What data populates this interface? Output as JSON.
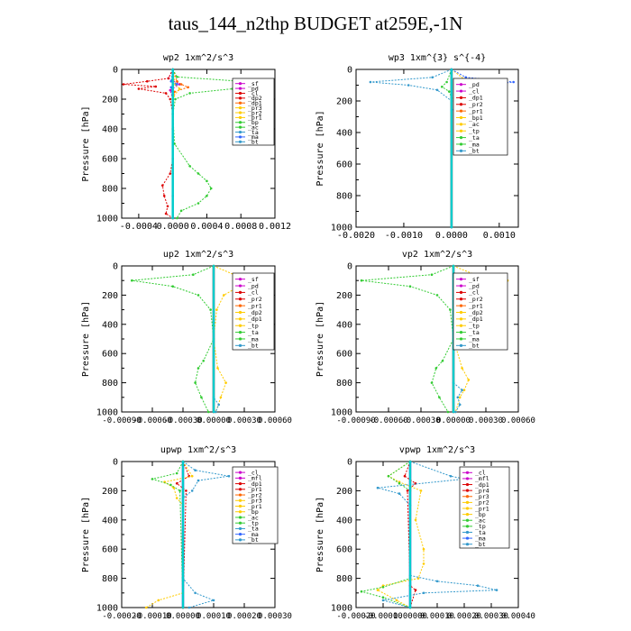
{
  "title": "taus_144_n2thp  BUDGET at259E,-1N",
  "chart_data": [
    {
      "type": "line",
      "title": "wp2   1xm^2/s^3",
      "ylabel": "Pressure [hPa]",
      "ylim": [
        1000,
        0
      ],
      "xlim": [
        -0.0006,
        0.0012
      ],
      "xticks": [
        "-0.0004",
        "0.0000",
        "0.0004",
        "0.0008",
        "0.0012"
      ],
      "xtick_values": [
        -0.0004,
        0.0,
        0.0004,
        0.0008,
        0.0012
      ],
      "yticks": [
        "0",
        "200",
        "400",
        "600",
        "800",
        "1000"
      ],
      "legend": [
        "_sf",
        "_pd",
        "_cl",
        "_dp2",
        "_dp1",
        "_pr3",
        "_pr2",
        "_pr1",
        "_bp",
        "_ac",
        "_ta",
        "_ma",
        "_bt"
      ],
      "series": [
        {
          "name": "_pd",
          "color": "#cc00cc",
          "pressure": [
            0,
            60,
            100,
            140,
            200,
            400,
            700,
            850,
            1000
          ],
          "values": [
            0,
            -5e-05,
            8e-05,
            -3e-05,
            0,
            0,
            0,
            0,
            0
          ]
        },
        {
          "name": "_cl",
          "color": "#dd0000",
          "pressure": [
            0,
            60,
            80,
            100,
            115,
            130,
            160,
            200,
            300,
            600,
            700,
            780,
            850,
            920,
            970,
            1000
          ],
          "values": [
            0,
            -5e-05,
            -0.0003,
            -0.00058,
            -0.0002,
            -0.0004,
            -8e-05,
            -3e-05,
            0,
            0,
            -3e-05,
            -0.00012,
            -0.0001,
            -6e-05,
            -8e-05,
            0
          ]
        },
        {
          "name": "_dp2",
          "color": "#ff6600",
          "pressure": [
            0,
            80,
            100,
            120,
            150,
            200,
            400,
            1000
          ],
          "values": [
            0,
            5e-05,
            0.0001,
            0.00018,
            2e-05,
            0,
            0,
            0
          ]
        },
        {
          "name": "_pr3",
          "color": "#ffcc00",
          "pressure": [
            0,
            100,
            130,
            180,
            1000
          ],
          "values": [
            0,
            3e-05,
            8e-05,
            1e-05,
            0
          ]
        },
        {
          "name": "_bp",
          "color": "#33cc33",
          "pressure": [
            0,
            50,
            80,
            100,
            130,
            160,
            200,
            300,
            500,
            650,
            700,
            750,
            800,
            850,
            900,
            950,
            1000
          ],
          "values": [
            0,
            5e-05,
            0.0008,
            0.001,
            0.0007,
            0.0002,
            3e-05,
            0,
            2e-05,
            0.0002,
            0.0003,
            0.0004,
            0.00045,
            0.0004,
            0.0003,
            0.0001,
            5e-05
          ]
        },
        {
          "name": "_ta",
          "color": "#3366ff",
          "pressure": [
            0,
            80,
            100,
            120,
            200,
            1000
          ],
          "values": [
            0,
            -2e-05,
            5e-05,
            -2e-05,
            0,
            0
          ]
        },
        {
          "name": "_bt",
          "color": "#00cccc",
          "pressure": [
            0,
            1000
          ],
          "values": [
            0,
            0
          ]
        }
      ]
    },
    {
      "type": "line",
      "title": "wp3   1xm^{3} s^{-4}",
      "ylabel": "Pressure [hPa]",
      "ylim": [
        1000,
        0
      ],
      "xlim": [
        -0.002,
        0.0014
      ],
      "xticks": [
        "-0.0020",
        "-0.0010",
        "0.0000",
        "0.0010"
      ],
      "xtick_values": [
        -0.002,
        -0.001,
        0.0,
        0.001
      ],
      "yticks": [
        "0",
        "200",
        "400",
        "600",
        "800",
        "1000"
      ],
      "legend": [
        "_pd",
        "_cl",
        "_dp1",
        "_pr2",
        "_pr1",
        "_bp1",
        "_ac",
        "_tp",
        "_ta",
        "_ma",
        "_bt"
      ],
      "series": [
        {
          "name": "_cl",
          "color": "#dd0000",
          "pressure": [
            0,
            1000
          ],
          "values": [
            0,
            0
          ]
        },
        {
          "name": "_pr2",
          "color": "#ffcc00",
          "pressure": [
            0,
            70,
            90,
            120,
            160,
            200,
            1000
          ],
          "values": [
            0,
            0.0003,
            0.0005,
            0.0003,
            0.0001,
            0,
            0
          ]
        },
        {
          "name": "_bp1",
          "color": "#33cc33",
          "pressure": [
            0,
            80,
            110,
            140,
            180,
            1000
          ],
          "values": [
            0,
            -0.0001,
            -0.0002,
            -5e-05,
            0,
            0
          ]
        },
        {
          "name": "_tp",
          "color": "#3399cc",
          "pressure": [
            0,
            50,
            80,
            100,
            130,
            200,
            1000
          ],
          "values": [
            0,
            -0.0004,
            -0.0017,
            -0.0009,
            -0.0003,
            0,
            0
          ]
        },
        {
          "name": "_ta",
          "color": "#3366ff",
          "pressure": [
            0,
            50,
            80,
            100,
            130,
            200,
            230,
            260,
            1000
          ],
          "values": [
            0,
            0.0003,
            0.0013,
            0.0007,
            0.0004,
            0.0003,
            0.0001,
            0,
            0
          ]
        },
        {
          "name": "_bt",
          "color": "#00cccc",
          "pressure": [
            0,
            1000
          ],
          "values": [
            0,
            0
          ]
        }
      ]
    },
    {
      "type": "line",
      "title": "up2   1xm^2/s^3",
      "ylabel": "Pressure [hPa]",
      "ylim": [
        1000,
        0
      ],
      "xlim": [
        -0.0009,
        0.0006
      ],
      "xticks": [
        "-0.00090",
        "-0.00060",
        "-0.00030",
        "0.00000",
        "0.00030",
        "0.00060"
      ],
      "xtick_values": [
        -0.0009,
        -0.0006,
        -0.0003,
        0.0,
        0.0003,
        0.0006
      ],
      "yticks": [
        "0",
        "200",
        "400",
        "600",
        "800",
        "1000"
      ],
      "legend": [
        "_sf",
        "_pd",
        "_cl",
        "_pr2",
        "_pr1",
        "_dp2",
        "_dp1",
        "_tp",
        "_ta",
        "_ma",
        "_bt"
      ],
      "series": [
        {
          "name": "_cl",
          "color": "#dd0000",
          "pressure": [
            0,
            1000
          ],
          "values": [
            0,
            0
          ]
        },
        {
          "name": "_pr2",
          "color": "#ffcc00",
          "pressure": [
            0,
            60,
            100,
            140,
            200,
            300,
            500,
            700,
            800,
            900,
            1000
          ],
          "values": [
            0,
            0.0002,
            0.00055,
            0.00025,
            0.0001,
            3e-05,
            0,
            4e-05,
            0.00012,
            7e-05,
            2e-05
          ]
        },
        {
          "name": "_dp2",
          "color": "#33cc33",
          "pressure": [
            0,
            60,
            100,
            140,
            200,
            300,
            500,
            650,
            700,
            800,
            900,
            1000
          ],
          "values": [
            0,
            -0.0002,
            -0.0008,
            -0.0004,
            -0.00015,
            -3e-05,
            0,
            -0.0001,
            -0.00015,
            -0.00018,
            -0.00012,
            -5e-05
          ]
        },
        {
          "name": "_tp",
          "color": "#3399cc",
          "pressure": [
            0,
            900,
            950,
            1000
          ],
          "values": [
            0,
            0,
            5e-05,
            2e-05
          ]
        },
        {
          "name": "_bt",
          "color": "#00cccc",
          "pressure": [
            0,
            1000
          ],
          "values": [
            0,
            0
          ]
        }
      ]
    },
    {
      "type": "line",
      "title": "vp2   1xm^2/s^3",
      "ylabel": "Pressure [hPa]",
      "ylim": [
        1000,
        0
      ],
      "xlim": [
        -0.0009,
        0.0006
      ],
      "xticks": [
        "-0.00090",
        "-0.00060",
        "-0.00030",
        "0.00000",
        "0.00030",
        "0.00060"
      ],
      "xtick_values": [
        -0.0009,
        -0.0006,
        -0.0003,
        0.0,
        0.0003,
        0.0006
      ],
      "yticks": [
        "0",
        "200",
        "400",
        "600",
        "800",
        "1000"
      ],
      "legend": [
        "_sf",
        "_pd",
        "_cl",
        "_pr2",
        "_pr1",
        "_dp2",
        "_dp1",
        "_tp",
        "_ta",
        "_ma",
        "_bt"
      ],
      "series": [
        {
          "name": "_cl",
          "color": "#dd0000",
          "pressure": [
            0,
            1000
          ],
          "values": [
            0,
            0
          ]
        },
        {
          "name": "_pr2",
          "color": "#ffcc00",
          "pressure": [
            0,
            60,
            100,
            140,
            200,
            300,
            500,
            700,
            780,
            850,
            900,
            1000
          ],
          "values": [
            0,
            0.0002,
            0.0005,
            0.00025,
            0.0001,
            3e-05,
            0,
            8e-05,
            0.00014,
            0.0001,
            6e-05,
            2e-05
          ]
        },
        {
          "name": "_dp2",
          "color": "#33cc33",
          "pressure": [
            0,
            60,
            100,
            140,
            200,
            300,
            500,
            650,
            700,
            800,
            900,
            1000
          ],
          "values": [
            0,
            -0.0002,
            -0.00085,
            -0.0004,
            -0.00015,
            -3e-05,
            0,
            -0.0001,
            -0.00016,
            -0.0002,
            -0.00013,
            -5e-05
          ]
        },
        {
          "name": "_tp",
          "color": "#3399cc",
          "pressure": [
            0,
            800,
            850,
            900,
            950,
            1000
          ],
          "values": [
            0,
            0,
            8e-05,
            4e-05,
            6e-05,
            2e-05
          ]
        },
        {
          "name": "_bt",
          "color": "#00cccc",
          "pressure": [
            0,
            1000
          ],
          "values": [
            0,
            0
          ]
        }
      ]
    },
    {
      "type": "line",
      "title": "upwp   1xm^2/s^3",
      "ylabel": "Pressure [hPa]",
      "ylim": [
        1000,
        0
      ],
      "xlim": [
        -0.0002,
        0.0003
      ],
      "xticks": [
        "-0.00020",
        "-0.00010",
        "0.00000",
        "0.00010",
        "0.00020",
        "0.00030"
      ],
      "xtick_values": [
        -0.0002,
        -0.0001,
        0.0,
        0.0001,
        0.0002,
        0.0003
      ],
      "yticks": [
        "0",
        "200",
        "400",
        "600",
        "800",
        "1000"
      ],
      "legend": [
        "_cl",
        "_mfl",
        "_dp1",
        "_pr1",
        "_pr2",
        "_pr3",
        "_pr1",
        "_bp",
        "_ac",
        "_tp",
        "_ta",
        "_ma",
        "_bt"
      ],
      "series": [
        {
          "name": "_cl",
          "color": "#cc00cc",
          "pressure": [
            0,
            1000
          ],
          "values": [
            0,
            0
          ]
        },
        {
          "name": "_dp1",
          "color": "#dd0000",
          "pressure": [
            0,
            100,
            150,
            200,
            1000
          ],
          "values": [
            0,
            2e-05,
            -2e-05,
            1e-05,
            0
          ]
        },
        {
          "name": "_pr2",
          "color": "#ffcc00",
          "pressure": [
            0,
            100,
            140,
            180,
            250,
            300,
            900,
            950,
            1000
          ],
          "values": [
            0,
            3e-05,
            -6e-05,
            -3e-05,
            -2e-05,
            0,
            0,
            -8e-05,
            -0.00012
          ]
        },
        {
          "name": "_bp",
          "color": "#33cc33",
          "pressure": [
            0,
            80,
            120,
            160,
            200,
            1000
          ],
          "values": [
            0,
            -2e-05,
            -0.0001,
            -4e-05,
            -1e-05,
            0
          ]
        },
        {
          "name": "_tp",
          "color": "#3399cc",
          "pressure": [
            0,
            60,
            100,
            130,
            200,
            250,
            800,
            900,
            950,
            1000
          ],
          "values": [
            0,
            4e-05,
            0.00015,
            5e-05,
            3e-05,
            0,
            0,
            4e-05,
            0.0001,
            2e-05
          ]
        },
        {
          "name": "_bt",
          "color": "#00cccc",
          "pressure": [
            0,
            1000
          ],
          "values": [
            0,
            0
          ]
        }
      ]
    },
    {
      "type": "line",
      "title": "vpwp   1xm^2/s^3",
      "ylabel": "Pressure [hPa]",
      "ylim": [
        1000,
        0
      ],
      "xlim": [
        -0.0002,
        0.0004
      ],
      "xticks": [
        "-0.00020",
        "-0.00010",
        "0.00000",
        "0.00010",
        "0.00020",
        "0.00030",
        "0.00040"
      ],
      "xtick_values": [
        -0.0002,
        -0.0001,
        0.0,
        0.0001,
        0.0002,
        0.0003,
        0.0004
      ],
      "yticks": [
        "0",
        "200",
        "400",
        "600",
        "800",
        "1000"
      ],
      "legend": [
        "_cl",
        "_mfl",
        "_dp1",
        "_pr4",
        "_pr3",
        "_pr2",
        "_pr1",
        "_bp",
        "_ac",
        "_tp",
        "_ta",
        "_ma",
        "_bt"
      ],
      "series": [
        {
          "name": "_cl",
          "color": "#cc00cc",
          "pressure": [
            0,
            1000
          ],
          "values": [
            0,
            0
          ]
        },
        {
          "name": "_dp1",
          "color": "#dd0000",
          "pressure": [
            0,
            100,
            150,
            200,
            850,
            880,
            1000
          ],
          "values": [
            0,
            -2e-05,
            2e-05,
            -1e-05,
            0,
            2e-05,
            0
          ]
        },
        {
          "name": "_pr2",
          "color": "#ffcc00",
          "pressure": [
            0,
            100,
            140,
            200,
            400,
            600,
            700,
            800,
            850,
            880,
            950,
            1000
          ],
          "values": [
            0,
            -8e-05,
            -4e-05,
            4e-05,
            2e-05,
            5e-05,
            5e-05,
            3e-05,
            -0.0001,
            -0.00012,
            -5e-05,
            0
          ]
        },
        {
          "name": "_bp",
          "color": "#33cc33",
          "pressure": [
            0,
            100,
            150,
            200,
            800,
            860,
            890,
            930,
            1000
          ],
          "values": [
            0,
            -8e-05,
            -4e-05,
            0,
            0,
            -0.0001,
            -0.00018,
            -0.0001,
            0
          ]
        },
        {
          "name": "_tp",
          "color": "#3399cc",
          "pressure": [
            0,
            100,
            120,
            180,
            220,
            300,
            780,
            820,
            850,
            880,
            900,
            950,
            1000
          ],
          "values": [
            0,
            0.00015,
            0.0002,
            -0.00012,
            -4e-05,
            0,
            0,
            0.0001,
            0.00025,
            0.00032,
            5e-05,
            -0.0001,
            0
          ]
        },
        {
          "name": "_bt",
          "color": "#00cccc",
          "pressure": [
            0,
            1000
          ],
          "values": [
            0,
            0
          ]
        }
      ]
    }
  ]
}
